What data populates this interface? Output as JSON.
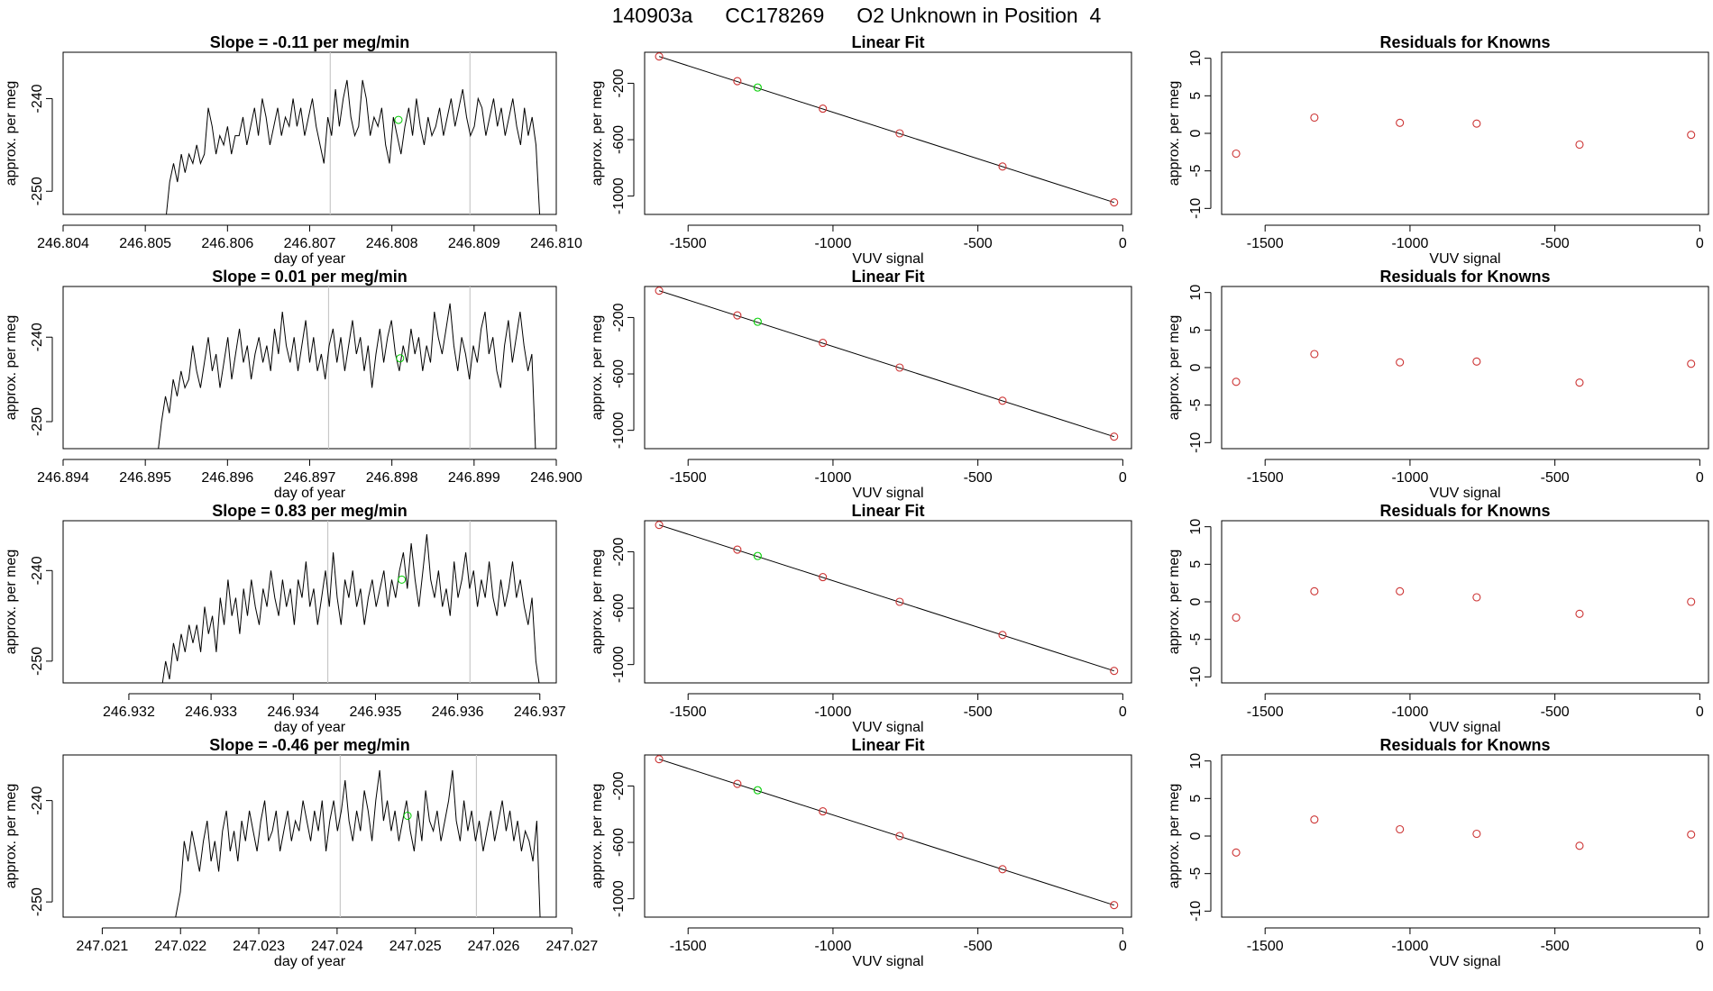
{
  "header": {
    "run_id": "140903a",
    "cylinder": "CC178269",
    "description": "O2 Unknown in Position  4"
  },
  "chart_data": [
    {
      "type": "line",
      "title": "Slope =  -0.11  per meg/min",
      "xlabel": "day of year",
      "ylabel": "approx. per meg",
      "xlim": [
        246.804,
        246.81
      ],
      "ylim": [
        -252.5,
        -235
      ],
      "xticks": [
        "246.804",
        "246.805",
        "246.806",
        "246.807",
        "246.808",
        "246.809",
        "246.810"
      ],
      "yticks": [
        "-240",
        "-250"
      ],
      "vlines": [
        246.80725,
        246.80895
      ],
      "series": [
        {
          "x_start": 246.80525,
          "x_end": 246.8098,
          "values": [
            -253,
            -249,
            -247,
            -249,
            -246,
            -248,
            -246,
            -247,
            -245,
            -247,
            -246,
            -241,
            -243,
            -246,
            -244,
            -245,
            -243,
            -246,
            -244,
            -244,
            -242,
            -245,
            -243,
            -241,
            -244,
            -240,
            -242,
            -245,
            -243,
            -241,
            -244,
            -242,
            -243,
            -240,
            -243,
            -241,
            -244,
            -242,
            -240,
            -243,
            -245,
            -247,
            -242,
            -244,
            -239,
            -243,
            -240,
            -238,
            -242,
            -244,
            -243,
            -238,
            -240,
            -244,
            -242,
            -243,
            -241,
            -245,
            -247,
            -242,
            -244,
            -246,
            -243,
            -241,
            -244,
            -240,
            -243,
            -245,
            -242,
            -244,
            -243,
            -241,
            -244,
            -242,
            -240,
            -243,
            -241,
            -239,
            -242,
            -244,
            -243,
            -240,
            -241,
            -244,
            -242,
            -240,
            -243,
            -241,
            -244,
            -242,
            -240,
            -243,
            -245,
            -241,
            -244,
            -242,
            -245,
            -253
          ]
        }
      ],
      "marker": {
        "x": 246.80808,
        "y": -242.3,
        "color": "#00cc00"
      }
    },
    {
      "type": "scatter",
      "title": "Linear Fit",
      "xlabel": "VUV signal",
      "ylabel": "approx. per meg",
      "xlim": [
        -1650,
        30
      ],
      "ylim": [
        -1130,
        20
      ],
      "xticks": [
        -1500,
        -1000,
        -500,
        0
      ],
      "yticks": [
        -200,
        -600,
        -1000
      ],
      "points": [
        [
          -1600,
          -10
        ],
        [
          -1330,
          -185
        ],
        [
          -1035,
          -380
        ],
        [
          -770,
          -555
        ],
        [
          -415,
          -790
        ],
        [
          -30,
          -1045
        ]
      ],
      "fit_line": [
        [
          -1600,
          -10
        ],
        [
          -30,
          -1045
        ]
      ],
      "marker": {
        "x": -1260,
        "y": -230,
        "color": "#00cc00"
      },
      "point_color": "#cc3333"
    },
    {
      "type": "scatter",
      "title": "Residuals for Knowns",
      "xlabel": "VUV signal",
      "ylabel": "approx. per meg",
      "xlim": [
        -1650,
        30
      ],
      "ylim": [
        -10.8,
        10.8
      ],
      "xticks": [
        -1500,
        -1000,
        -500,
        0
      ],
      "yticks": [
        10,
        5,
        0,
        -5,
        -10
      ],
      "points": [
        [
          -1600,
          -2.7
        ],
        [
          -1330,
          2.1
        ],
        [
          -1035,
          1.4
        ],
        [
          -770,
          1.3
        ],
        [
          -415,
          -1.5
        ],
        [
          -30,
          -0.2
        ]
      ],
      "point_color": "#cc3333"
    },
    {
      "type": "line",
      "title": "Slope =  0.01  per meg/min",
      "xlabel": "day of year",
      "ylabel": "approx. per meg",
      "xlim": [
        246.894,
        246.9
      ],
      "ylim": [
        -253.2,
        -234
      ],
      "xticks": [
        "246.894",
        "246.895",
        "246.896",
        "246.897",
        "246.898",
        "246.899",
        "246.900"
      ],
      "yticks": [
        "-240",
        "-250"
      ],
      "vlines": [
        246.89723,
        246.89895
      ],
      "series": [
        {
          "x_start": 246.89515,
          "x_end": 246.89975,
          "values": [
            -254,
            -250,
            -247,
            -249,
            -245,
            -247,
            -244,
            -246,
            -245,
            -241,
            -244,
            -246,
            -243,
            -240,
            -244,
            -242,
            -246,
            -243,
            -240,
            -245,
            -242,
            -239,
            -243,
            -241,
            -245,
            -242,
            -240,
            -243,
            -241,
            -244,
            -239,
            -242,
            -237,
            -241,
            -243,
            -240,
            -244,
            -241,
            -238,
            -243,
            -240,
            -244,
            -242,
            -245,
            -241,
            -239,
            -243,
            -240,
            -244,
            -241,
            -238,
            -242,
            -240,
            -244,
            -241,
            -246,
            -242,
            -239,
            -243,
            -240,
            -238,
            -242,
            -244,
            -241,
            -243,
            -239,
            -242,
            -240,
            -244,
            -241,
            -243,
            -237,
            -240,
            -242,
            -239,
            -236,
            -241,
            -244,
            -240,
            -242,
            -245,
            -241,
            -243,
            -239,
            -237,
            -242,
            -240,
            -244,
            -246,
            -241,
            -238,
            -243,
            -240,
            -237,
            -241,
            -244,
            -242,
            -254
          ]
        }
      ],
      "marker": {
        "x": 246.8981,
        "y": -242.5,
        "color": "#00cc00"
      }
    },
    {
      "type": "scatter",
      "title": "Linear Fit",
      "xlabel": "VUV signal",
      "ylabel": "approx. per meg",
      "xlim": [
        -1650,
        30
      ],
      "ylim": [
        -1130,
        20
      ],
      "xticks": [
        -1500,
        -1000,
        -500,
        0
      ],
      "yticks": [
        -200,
        -600,
        -1000
      ],
      "points": [
        [
          -1600,
          -10
        ],
        [
          -1330,
          -185
        ],
        [
          -1035,
          -380
        ],
        [
          -770,
          -555
        ],
        [
          -415,
          -790
        ],
        [
          -30,
          -1045
        ]
      ],
      "fit_line": [
        [
          -1600,
          -10
        ],
        [
          -30,
          -1045
        ]
      ],
      "marker": {
        "x": -1260,
        "y": -230,
        "color": "#00cc00"
      },
      "point_color": "#cc3333"
    },
    {
      "type": "scatter",
      "title": "Residuals for Knowns",
      "xlabel": "VUV signal",
      "ylabel": "approx. per meg",
      "xlim": [
        -1650,
        30
      ],
      "ylim": [
        -10.8,
        10.8
      ],
      "xticks": [
        -1500,
        -1000,
        -500,
        0
      ],
      "yticks": [
        10,
        5,
        0,
        -5,
        -10
      ],
      "points": [
        [
          -1600,
          -1.9
        ],
        [
          -1330,
          1.8
        ],
        [
          -1035,
          0.7
        ],
        [
          -770,
          0.8
        ],
        [
          -415,
          -2.0
        ],
        [
          -30,
          0.5
        ]
      ],
      "point_color": "#cc3333"
    },
    {
      "type": "line",
      "title": "Slope =  0.83  per meg/min",
      "xlabel": "day of year",
      "ylabel": "approx. per meg",
      "xlim": [
        246.9312,
        246.9372
      ],
      "ylim": [
        -252.4,
        -234.5
      ],
      "xticks": [
        "246.932",
        "246.933",
        "246.934",
        "246.935",
        "246.936",
        "246.937"
      ],
      "yticks": [
        "-240",
        "-250"
      ],
      "vlines": [
        246.93442,
        246.93615
      ],
      "series": [
        {
          "x_start": 246.9324,
          "x_end": 246.937,
          "values": [
            -253,
            -250,
            -252,
            -248,
            -250,
            -247,
            -249,
            -246,
            -248,
            -246,
            -249,
            -244,
            -247,
            -245,
            -249,
            -243,
            -246,
            -241,
            -245,
            -243,
            -247,
            -242,
            -245,
            -241,
            -244,
            -246,
            -242,
            -244,
            -240,
            -243,
            -245,
            -241,
            -244,
            -242,
            -246,
            -241,
            -243,
            -239,
            -244,
            -242,
            -246,
            -243,
            -240,
            -244,
            -238,
            -243,
            -246,
            -241,
            -243,
            -240,
            -244,
            -242,
            -246,
            -243,
            -241,
            -244,
            -242,
            -240,
            -244,
            -241,
            -243,
            -240,
            -238,
            -242,
            -237,
            -241,
            -244,
            -240,
            -236,
            -241,
            -243,
            -240,
            -244,
            -242,
            -245,
            -239,
            -243,
            -241,
            -238,
            -242,
            -240,
            -244,
            -241,
            -243,
            -239,
            -243,
            -245,
            -241,
            -244,
            -242,
            -239,
            -243,
            -241,
            -244,
            -246,
            -243,
            -250,
            -253
          ]
        }
      ],
      "marker": {
        "x": 246.93532,
        "y": -241.0,
        "color": "#00cc00"
      }
    },
    {
      "type": "scatter",
      "title": "Linear Fit",
      "xlabel": "VUV signal",
      "ylabel": "approx. per meg",
      "xlim": [
        -1650,
        30
      ],
      "ylim": [
        -1130,
        20
      ],
      "xticks": [
        -1500,
        -1000,
        -500,
        0
      ],
      "yticks": [
        -200,
        -600,
        -1000
      ],
      "points": [
        [
          -1600,
          -10
        ],
        [
          -1330,
          -185
        ],
        [
          -1035,
          -380
        ],
        [
          -770,
          -555
        ],
        [
          -415,
          -790
        ],
        [
          -30,
          -1045
        ]
      ],
      "fit_line": [
        [
          -1600,
          -10
        ],
        [
          -30,
          -1045
        ]
      ],
      "marker": {
        "x": -1260,
        "y": -230,
        "color": "#00cc00"
      },
      "point_color": "#cc3333"
    },
    {
      "type": "scatter",
      "title": "Residuals for Knowns",
      "xlabel": "VUV signal",
      "ylabel": "approx. per meg",
      "xlim": [
        -1650,
        30
      ],
      "ylim": [
        -10.8,
        10.8
      ],
      "xticks": [
        -1500,
        -1000,
        -500,
        0
      ],
      "yticks": [
        10,
        5,
        0,
        -5,
        -10
      ],
      "points": [
        [
          -1600,
          -2.1
        ],
        [
          -1330,
          1.4
        ],
        [
          -1035,
          1.4
        ],
        [
          -770,
          0.6
        ],
        [
          -415,
          -1.6
        ],
        [
          -30,
          0.0
        ]
      ],
      "point_color": "#cc3333"
    },
    {
      "type": "line",
      "title": "Slope =  -0.46  per meg/min",
      "xlabel": "day of year",
      "ylabel": "approx. per meg",
      "xlim": [
        247.0205,
        247.0268
      ],
      "ylim": [
        -251.5,
        -235.5
      ],
      "xticks": [
        "247.021",
        "247.022",
        "247.023",
        "247.024",
        "247.025",
        "247.026",
        "247.027"
      ],
      "yticks": [
        "-240",
        "-250"
      ],
      "vlines": [
        247.02404,
        247.02578
      ],
      "series": [
        {
          "x_start": 247.0219,
          "x_end": 247.0266,
          "values": [
            -253,
            -251,
            -249,
            -244,
            -246,
            -243,
            -245,
            -247,
            -244,
            -242,
            -246,
            -244,
            -247,
            -243,
            -241,
            -245,
            -243,
            -246,
            -242,
            -244,
            -241,
            -243,
            -245,
            -242,
            -240,
            -244,
            -243,
            -241,
            -245,
            -243,
            -241,
            -244,
            -242,
            -243,
            -240,
            -242,
            -244,
            -241,
            -243,
            -240,
            -245,
            -242,
            -240,
            -243,
            -241,
            -238,
            -242,
            -244,
            -241,
            -243,
            -239,
            -241,
            -244,
            -240,
            -237,
            -242,
            -240,
            -243,
            -241,
            -244,
            -242,
            -240,
            -243,
            -245,
            -241,
            -244,
            -239,
            -242,
            -243,
            -241,
            -244,
            -242,
            -240,
            -237,
            -242,
            -244,
            -240,
            -243,
            -241,
            -244,
            -242,
            -245,
            -243,
            -241,
            -244,
            -242,
            -240,
            -243,
            -241,
            -244,
            -242,
            -245,
            -243,
            -244,
            -246,
            -242,
            -253
          ]
        }
      ],
      "marker": {
        "x": 247.0249,
        "y": -241.5,
        "color": "#00cc00"
      }
    },
    {
      "type": "scatter",
      "title": "Linear Fit",
      "xlabel": "VUV signal",
      "ylabel": "approx. per meg",
      "xlim": [
        -1650,
        30
      ],
      "ylim": [
        -1130,
        20
      ],
      "xticks": [
        -1500,
        -1000,
        -500,
        0
      ],
      "yticks": [
        -200,
        -600,
        -1000
      ],
      "points": [
        [
          -1600,
          -10
        ],
        [
          -1330,
          -185
        ],
        [
          -1035,
          -380
        ],
        [
          -770,
          -555
        ],
        [
          -415,
          -790
        ],
        [
          -30,
          -1045
        ]
      ],
      "fit_line": [
        [
          -1600,
          -10
        ],
        [
          -30,
          -1045
        ]
      ],
      "marker": {
        "x": -1260,
        "y": -230,
        "color": "#00cc00"
      },
      "point_color": "#cc3333"
    },
    {
      "type": "scatter",
      "title": "Residuals for Knowns",
      "xlabel": "VUV signal",
      "ylabel": "approx. per meg",
      "xlim": [
        -1650,
        30
      ],
      "ylim": [
        -10.8,
        10.8
      ],
      "xticks": [
        -1500,
        -1000,
        -500,
        0
      ],
      "yticks": [
        10,
        5,
        0,
        -5,
        -10
      ],
      "points": [
        [
          -1600,
          -2.2
        ],
        [
          -1330,
          2.2
        ],
        [
          -1035,
          0.9
        ],
        [
          -770,
          0.3
        ],
        [
          -415,
          -1.3
        ],
        [
          -30,
          0.2
        ]
      ],
      "point_color": "#cc3333"
    }
  ]
}
